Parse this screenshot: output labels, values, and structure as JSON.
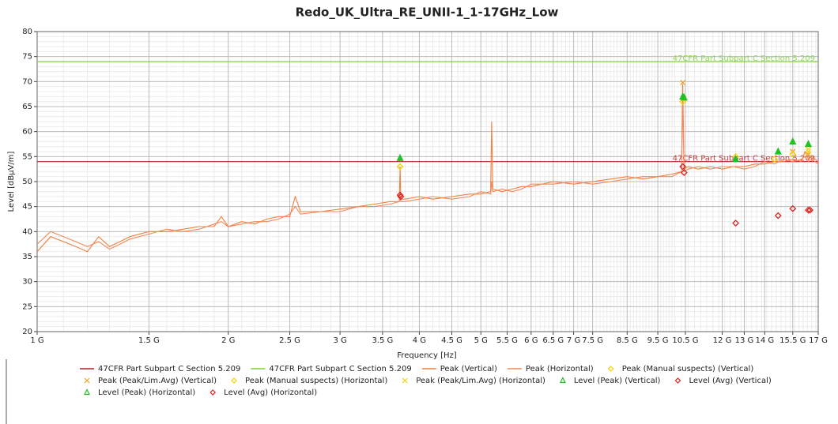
{
  "chart_data": {
    "type": "line",
    "title": "Redo_UK_Ultra_RE_UNII-1_1-17GHz_Low",
    "x_label": "Frequency [Hz]",
    "y_label": "Level [dBµV/m]",
    "x_scale": "log",
    "grid": true,
    "xlim": [
      1,
      17
    ],
    "ylim": [
      20,
      80
    ],
    "yticks": [
      20,
      25,
      30,
      35,
      40,
      45,
      50,
      55,
      60,
      65,
      70,
      75,
      80
    ],
    "xticks": [
      {
        "value": 1,
        "label": "1 G"
      },
      {
        "value": 1.5,
        "label": "1.5 G"
      },
      {
        "value": 2,
        "label": "2 G"
      },
      {
        "value": 2.5,
        "label": "2.5 G"
      },
      {
        "value": 3,
        "label": "3 G"
      },
      {
        "value": 3.5,
        "label": "3.5 G"
      },
      {
        "value": 4,
        "label": "4 G"
      },
      {
        "value": 4.5,
        "label": "4.5 G"
      },
      {
        "value": 5,
        "label": "5 G"
      },
      {
        "value": 5.5,
        "label": "5.5 G"
      },
      {
        "value": 6,
        "label": "6 G"
      },
      {
        "value": 6.5,
        "label": "6.5 G"
      },
      {
        "value": 7,
        "label": "7 G"
      },
      {
        "value": 7.5,
        "label": "7.5 G"
      },
      {
        "value": 8.5,
        "label": "8.5 G"
      },
      {
        "value": 9.5,
        "label": "9.5 G"
      },
      {
        "value": 10.5,
        "label": "10.5 G"
      },
      {
        "value": 12,
        "label": "12 G"
      },
      {
        "value": 13,
        "label": "13 G"
      },
      {
        "value": 14,
        "label": "14 G"
      },
      {
        "value": 15.5,
        "label": "15.5 G"
      },
      {
        "value": 17,
        "label": "17 G"
      }
    ],
    "series": [
      {
        "name": "47CFR Part Subpart C Section 5.209",
        "color": "#b22222",
        "kind": "limit",
        "x": [
          1,
          17
        ],
        "values": [
          54,
          54
        ]
      },
      {
        "name": "47CFR Part Subpart C Section 5.209",
        "color": "#7fd13b",
        "kind": "limit",
        "x": [
          1,
          17
        ],
        "values": [
          74,
          74
        ]
      },
      {
        "name": "Peak (Vertical)",
        "color": "#f08040",
        "kind": "trace",
        "x": [
          1,
          1.05,
          1.1,
          1.15,
          1.2,
          1.25,
          1.3,
          1.35,
          1.4,
          1.5,
          1.6,
          1.7,
          1.8,
          1.9,
          1.95,
          2,
          2.1,
          2.2,
          2.3,
          2.4,
          2.5,
          2.55,
          2.6,
          2.8,
          3,
          3.2,
          3.4,
          3.6,
          3.72,
          3.73,
          3.74,
          3.8,
          4,
          4.2,
          4.5,
          4.8,
          5,
          5.18,
          5.2,
          5.22,
          5.4,
          5.6,
          5.8,
          6,
          6.5,
          7,
          7.5,
          8,
          8.5,
          9,
          9.5,
          10,
          10.35,
          10.4,
          10.45,
          10.6,
          11,
          11.5,
          12,
          12.5,
          13,
          13.5,
          14,
          14.5,
          15,
          15.5,
          16,
          16.2,
          16.4,
          16.6,
          17
        ],
        "values": [
          36,
          39,
          38,
          37,
          36,
          39,
          37,
          38,
          39,
          40,
          40,
          40.5,
          41,
          41,
          43,
          41,
          42,
          41.5,
          42.5,
          43,
          43,
          47,
          44,
          44,
          44.5,
          45,
          45.5,
          46,
          46,
          53,
          46.5,
          46.5,
          47,
          46.5,
          47,
          47.5,
          47.5,
          48,
          62,
          48.5,
          48,
          48.5,
          49,
          49,
          50,
          49.5,
          50,
          50.5,
          51,
          50.5,
          51,
          51.5,
          52,
          69.5,
          52.5,
          53,
          52.5,
          53,
          52.5,
          53,
          53,
          53.5,
          53.5,
          54,
          54,
          54.5,
          54,
          56,
          54.5,
          55,
          54
        ]
      },
      {
        "name": "Peak (Horizontal)",
        "color": "#f4895a",
        "kind": "trace",
        "x": [
          1,
          1.05,
          1.1,
          1.15,
          1.2,
          1.25,
          1.3,
          1.35,
          1.4,
          1.5,
          1.6,
          1.7,
          1.8,
          1.9,
          1.95,
          2,
          2.1,
          2.2,
          2.3,
          2.4,
          2.5,
          2.55,
          2.6,
          2.8,
          3,
          3.2,
          3.4,
          3.6,
          3.72,
          3.73,
          3.74,
          3.8,
          4,
          4.2,
          4.5,
          4.8,
          5,
          5.18,
          5.2,
          5.22,
          5.4,
          5.6,
          5.8,
          6,
          6.5,
          7,
          7.5,
          8,
          8.5,
          9,
          9.5,
          10,
          10.35,
          10.4,
          10.45,
          10.6,
          11,
          11.5,
          12,
          12.5,
          13,
          13.5,
          14,
          14.5,
          15,
          15.5,
          16,
          16.2,
          16.4,
          16.6,
          17
        ],
        "values": [
          37.5,
          40,
          39,
          38,
          37,
          38,
          36.5,
          37.5,
          38.5,
          39.5,
          40.5,
          40,
          40.5,
          41.5,
          42,
          41,
          41.5,
          42,
          42,
          42.5,
          43.5,
          45,
          43.5,
          44,
          44,
          45,
          45,
          45.5,
          46,
          47,
          46,
          46,
          46.5,
          47,
          46.5,
          47,
          48,
          47.5,
          50,
          48,
          48.5,
          48,
          48.5,
          49.5,
          49.5,
          50,
          49.5,
          50,
          50.5,
          51,
          51,
          51,
          52,
          66,
          52,
          52.5,
          53,
          52.5,
          53,
          53,
          52.5,
          53,
          54,
          53.5,
          54.5,
          54,
          54.5,
          55,
          54,
          54.5,
          53.5
        ]
      },
      {
        "name": "Peak (Manual suspects) (Vertical)",
        "color": "#f5d000",
        "kind": "marker",
        "marker": "diamond",
        "x": [
          3.73,
          10.4,
          12.6,
          14.5
        ],
        "values": [
          53,
          66,
          55,
          54.5
        ]
      },
      {
        "name": "Peak (Peak/Lim.Avg) (Vertical)",
        "color": "#f0a020",
        "kind": "marker",
        "marker": "x",
        "x": [
          10.4,
          15.5,
          16.4
        ],
        "values": [
          69.8,
          56,
          55.5
        ]
      },
      {
        "name": "Peak (Manual suspects) (Horizontal)",
        "color": "#f5d000",
        "kind": "marker",
        "marker": "diamond",
        "x": [
          15.5,
          16.4
        ],
        "values": [
          55.5,
          57
        ]
      },
      {
        "name": "Peak (Peak/Lim.Avg) (Horizontal)",
        "color": "#f5d000",
        "kind": "marker",
        "marker": "x",
        "x": [
          10.45,
          16.4
        ],
        "values": [
          66.5,
          56
        ]
      },
      {
        "name": "Level (Peak) (Vertical)",
        "color": "#22c022",
        "kind": "marker",
        "marker": "triangle",
        "x": [
          10.4,
          14.7,
          16.4
        ],
        "values": [
          67,
          56,
          57.5
        ]
      },
      {
        "name": "Level (Avg) (Vertical)",
        "color": "#e02020",
        "kind": "marker",
        "marker": "diamond",
        "x": [
          3.74,
          10.4,
          12.6,
          14.7,
          15.5,
          16.4
        ],
        "values": [
          47,
          53,
          41.7,
          43.2,
          44.6,
          44.3
        ]
      },
      {
        "name": "Level (Peak) (Horizontal)",
        "color": "#22c022",
        "kind": "marker",
        "marker": "triangle",
        "x": [
          3.73,
          10.45,
          12.6,
          15.5
        ],
        "values": [
          54.7,
          66.8,
          54.5,
          58
        ]
      },
      {
        "name": "Level (Avg) (Horizontal)",
        "color": "#e02020",
        "kind": "marker",
        "marker": "diamond",
        "x": [
          3.73,
          10.45,
          16.5
        ],
        "values": [
          47.3,
          51.8,
          44.3
        ]
      }
    ]
  }
}
